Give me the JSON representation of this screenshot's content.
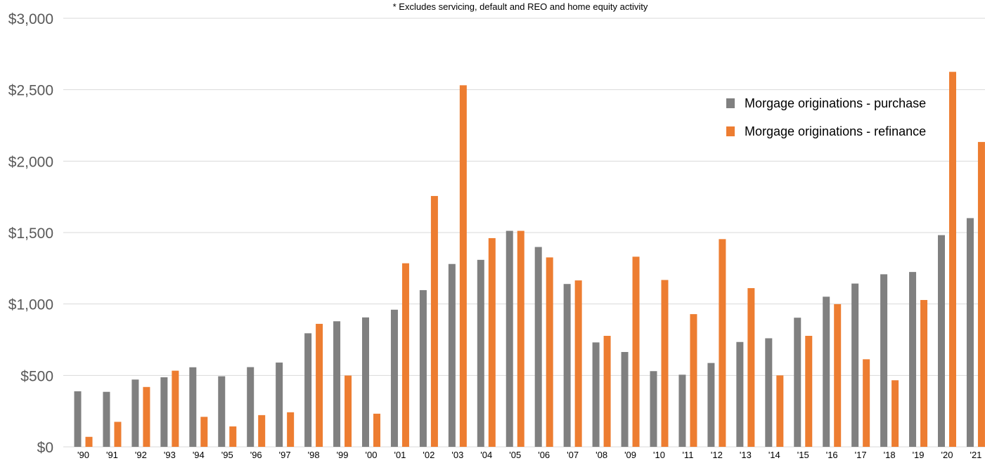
{
  "chart_data": {
    "type": "bar",
    "subtitle": "* Excludes servicing, default and REO and home equity activity",
    "xlabel": "",
    "ylabel": "",
    "ylim": [
      0,
      3000
    ],
    "yticks": [
      "$0",
      "$500",
      "$1,000",
      "$1,500",
      "$2,000",
      "$2,500",
      "$3,000"
    ],
    "grid": true,
    "legend_position": "top-right",
    "categories": [
      "'90",
      "'91",
      "'92",
      "'93",
      "'94",
      "'95",
      "'96",
      "'97",
      "'98",
      "'99",
      "'00",
      "'01",
      "'02",
      "'03",
      "'04",
      "'05",
      "'06",
      "'07",
      "'08",
      "'09",
      "'10",
      "'11",
      "'12",
      "'13",
      "'14",
      "'15",
      "'16",
      "'17",
      "'18",
      "'19",
      "'20",
      "'21"
    ],
    "series": [
      {
        "name": "Morgage originations - purchase",
        "color": "#808080",
        "values": [
          389,
          385,
          471,
          487,
          557,
          494,
          558,
          590,
          795,
          879,
          906,
          960,
          1097,
          1280,
          1309,
          1512,
          1399,
          1140,
          731,
          664,
          530,
          505,
          587,
          734,
          760,
          904,
          1051,
          1143,
          1208,
          1224,
          1482,
          1601
        ]
      },
      {
        "name": "Morgage originations - refinance",
        "color": "#ED7D31",
        "values": [
          70,
          175,
          419,
          533,
          210,
          143,
          222,
          242,
          861,
          499,
          232,
          1285,
          1756,
          2531,
          1461,
          1512,
          1326,
          1165,
          777,
          1331,
          1168,
          929,
          1454,
          1111,
          500,
          777,
          999,
          613,
          466,
          1028,
          2625,
          2134
        ]
      }
    ]
  }
}
